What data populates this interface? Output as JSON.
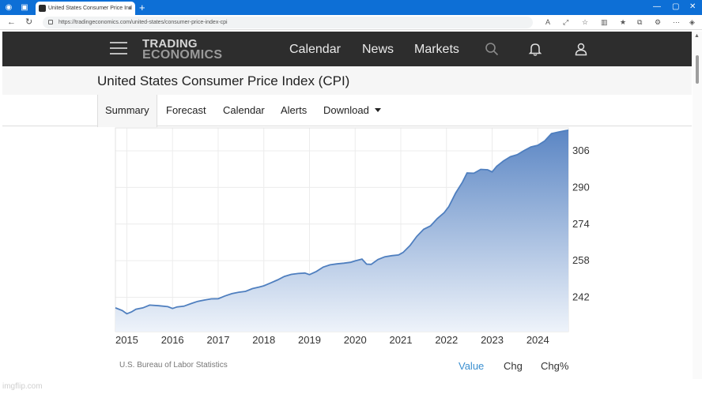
{
  "browser": {
    "tab_title": "United States Consumer Price Ind",
    "url": "https://tradingeconomics.com/united-states/consumer-price-index-cpi",
    "new_tab": "+",
    "tab_close": "×"
  },
  "site": {
    "logo_line1": "TRADING",
    "logo_line2": "ECONOMICS",
    "nav": [
      "Calendar",
      "News",
      "Markets"
    ]
  },
  "page": {
    "title": "United States Consumer Price Index (CPI)",
    "tabs": [
      "Summary",
      "Forecast",
      "Calendar",
      "Alerts",
      "Download"
    ],
    "active_tab": "Summary"
  },
  "chart_data": {
    "type": "area",
    "title": "",
    "xlabel": "",
    "ylabel": "",
    "x_ticks": [
      "2015",
      "2016",
      "2017",
      "2018",
      "2019",
      "2020",
      "2021",
      "2022",
      "2023",
      "2024"
    ],
    "y_ticks": [
      242,
      258,
      274,
      290,
      306
    ],
    "ylim": [
      227,
      316
    ],
    "xlim": [
      2014.75,
      2024.67
    ],
    "y_axis_position": "right",
    "grid": true,
    "colors": {
      "line": "#4f7fbf",
      "fill_top": "#5b86c4",
      "fill_bottom": "#eef3fa"
    },
    "series": [
      {
        "values": [
          [
            2014.75,
            237.4
          ],
          [
            2014.9,
            236.2
          ],
          [
            2015.0,
            234.8
          ],
          [
            2015.1,
            235.6
          ],
          [
            2015.2,
            236.8
          ],
          [
            2015.35,
            237.4
          ],
          [
            2015.5,
            238.6
          ],
          [
            2015.7,
            238.3
          ],
          [
            2015.9,
            237.9
          ],
          [
            2016.0,
            237.1
          ],
          [
            2016.1,
            237.8
          ],
          [
            2016.25,
            238.1
          ],
          [
            2016.4,
            239.2
          ],
          [
            2016.55,
            240.2
          ],
          [
            2016.7,
            240.8
          ],
          [
            2016.85,
            241.3
          ],
          [
            2017.0,
            241.4
          ],
          [
            2017.15,
            242.6
          ],
          [
            2017.3,
            243.6
          ],
          [
            2017.45,
            244.2
          ],
          [
            2017.6,
            244.6
          ],
          [
            2017.75,
            245.8
          ],
          [
            2017.9,
            246.5
          ],
          [
            2018.0,
            247.0
          ],
          [
            2018.15,
            248.3
          ],
          [
            2018.3,
            249.6
          ],
          [
            2018.45,
            251.1
          ],
          [
            2018.6,
            252.0
          ],
          [
            2018.75,
            252.4
          ],
          [
            2018.9,
            252.6
          ],
          [
            2019.0,
            251.9
          ],
          [
            2019.15,
            253.3
          ],
          [
            2019.3,
            255.2
          ],
          [
            2019.45,
            256.2
          ],
          [
            2019.6,
            256.6
          ],
          [
            2019.75,
            256.9
          ],
          [
            2019.9,
            257.3
          ],
          [
            2020.0,
            257.9
          ],
          [
            2020.15,
            258.7
          ],
          [
            2020.25,
            256.5
          ],
          [
            2020.35,
            256.4
          ],
          [
            2020.5,
            258.5
          ],
          [
            2020.65,
            259.7
          ],
          [
            2020.8,
            260.2
          ],
          [
            2020.95,
            260.5
          ],
          [
            2021.05,
            261.6
          ],
          [
            2021.2,
            264.6
          ],
          [
            2021.35,
            268.6
          ],
          [
            2021.5,
            271.7
          ],
          [
            2021.65,
            273.2
          ],
          [
            2021.8,
            276.4
          ],
          [
            2021.95,
            279.0
          ],
          [
            2022.05,
            281.6
          ],
          [
            2022.2,
            287.5
          ],
          [
            2022.35,
            292.3
          ],
          [
            2022.45,
            296.3
          ],
          [
            2022.6,
            296.2
          ],
          [
            2022.75,
            297.9
          ],
          [
            2022.9,
            297.7
          ],
          [
            2023.0,
            296.8
          ],
          [
            2023.1,
            299.2
          ],
          [
            2023.25,
            301.6
          ],
          [
            2023.4,
            303.4
          ],
          [
            2023.55,
            304.3
          ],
          [
            2023.7,
            306.1
          ],
          [
            2023.85,
            307.7
          ],
          [
            2024.0,
            308.4
          ],
          [
            2024.15,
            310.3
          ],
          [
            2024.3,
            313.5
          ],
          [
            2024.45,
            314.2
          ],
          [
            2024.6,
            314.8
          ],
          [
            2024.67,
            315.0
          ]
        ]
      }
    ]
  },
  "footer": {
    "source": "U.S. Bureau of Labor Statistics",
    "view_options": [
      "Value",
      "Chg",
      "Chg%"
    ],
    "selected_view": "Value"
  },
  "icons": {
    "search": "search-icon",
    "bell": "bell-icon",
    "user": "user-icon",
    "menu": "hamburger-menu-icon"
  },
  "watermark": "imgflip.com"
}
